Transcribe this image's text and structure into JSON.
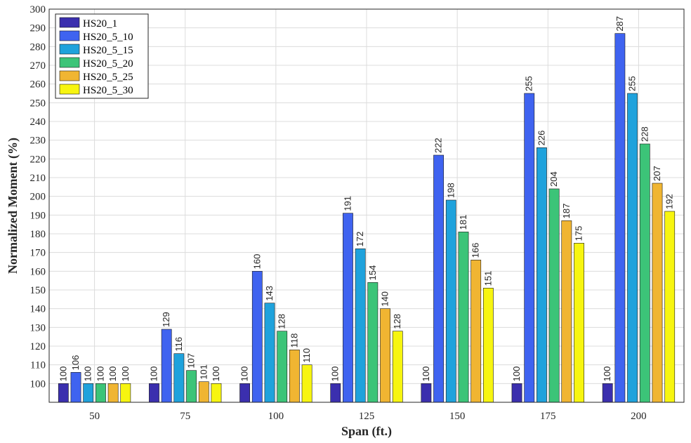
{
  "chart_data": {
    "type": "bar",
    "xlabel": "Span (ft.)",
    "ylabel": "Normalized Moment (%)",
    "categories": [
      "50",
      "75",
      "100",
      "125",
      "150",
      "175",
      "200"
    ],
    "ylim": [
      90,
      300
    ],
    "yticks": [
      100,
      110,
      120,
      130,
      140,
      150,
      160,
      170,
      180,
      190,
      200,
      210,
      220,
      230,
      240,
      250,
      260,
      270,
      280,
      290,
      300
    ],
    "grid": true,
    "legend_position": "top-left",
    "series": [
      {
        "name": "HS20_1",
        "color": "#3b2fae",
        "values": [
          100,
          100,
          100,
          100,
          100,
          100,
          100
        ]
      },
      {
        "name": "HS20_5_10",
        "color": "#3f63f0",
        "values": [
          106,
          129,
          160,
          191,
          222,
          255,
          287
        ]
      },
      {
        "name": "HS20_5_15",
        "color": "#1fa2dc",
        "values": [
          100,
          116,
          143,
          172,
          198,
          226,
          255
        ]
      },
      {
        "name": "HS20_5_20",
        "color": "#3cc478",
        "values": [
          100,
          107,
          128,
          154,
          181,
          204,
          228
        ]
      },
      {
        "name": "HS20_5_25",
        "color": "#f0b532",
        "values": [
          100,
          101,
          118,
          140,
          166,
          187,
          207
        ]
      },
      {
        "name": "HS20_5_30",
        "color": "#f7f510",
        "values": [
          100,
          100,
          110,
          128,
          151,
          175,
          192
        ]
      }
    ]
  }
}
